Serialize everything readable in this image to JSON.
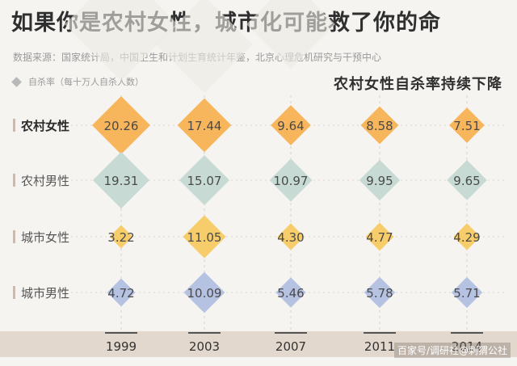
{
  "title": "如果你是农村女性，城市化可能救了你的命",
  "source": "数据来源：国家统计局，中国卫生和计划生育统计年鉴，北京心理危机研究与干预中心",
  "watermark": "百家号/调研社@刺猬公社",
  "colors": {
    "rural_female": "#f7b55c",
    "rural_male": "#c7dbd4",
    "urban_female": "#f6cd6a",
    "urban_male": "#b6c2e2",
    "axis_band": "#e2d8cd",
    "row_marker": "#c9bbb0"
  },
  "chart_data": {
    "type": "scatter",
    "title": "农村女性自杀率持续下降",
    "legend_label": "自杀率（每十万人自杀人数）",
    "legend_position": "top-left",
    "categories": [
      "1999",
      "2003",
      "2007",
      "2011",
      "2014"
    ],
    "series": [
      {
        "name": "农村女性",
        "values": [
          20.26,
          17.44,
          9.64,
          8.58,
          7.51
        ],
        "color": "#f7b55c"
      },
      {
        "name": "农村男性",
        "values": [
          19.31,
          15.07,
          10.97,
          9.95,
          9.65
        ],
        "color": "#c7dbd4"
      },
      {
        "name": "城市女性",
        "values": [
          3.22,
          11.05,
          4.3,
          4.77,
          4.29
        ],
        "color": "#f6cd6a"
      },
      {
        "name": "城市男性",
        "values": [
          4.72,
          10.09,
          5.46,
          5.78,
          5.71
        ],
        "color": "#b6c2e2"
      }
    ],
    "value_labels": [
      [
        "20.26",
        "17.44",
        "9.64",
        "8.58",
        "7.51"
      ],
      [
        "19.31",
        "15.07",
        "10.97",
        "9.95",
        "9.65"
      ],
      [
        "3.22",
        "11.05",
        "4.30",
        "4.77",
        "4.29"
      ],
      [
        "4.72",
        "10.09",
        "5.46",
        "5.78",
        "5.71"
      ]
    ],
    "grid": true
  }
}
